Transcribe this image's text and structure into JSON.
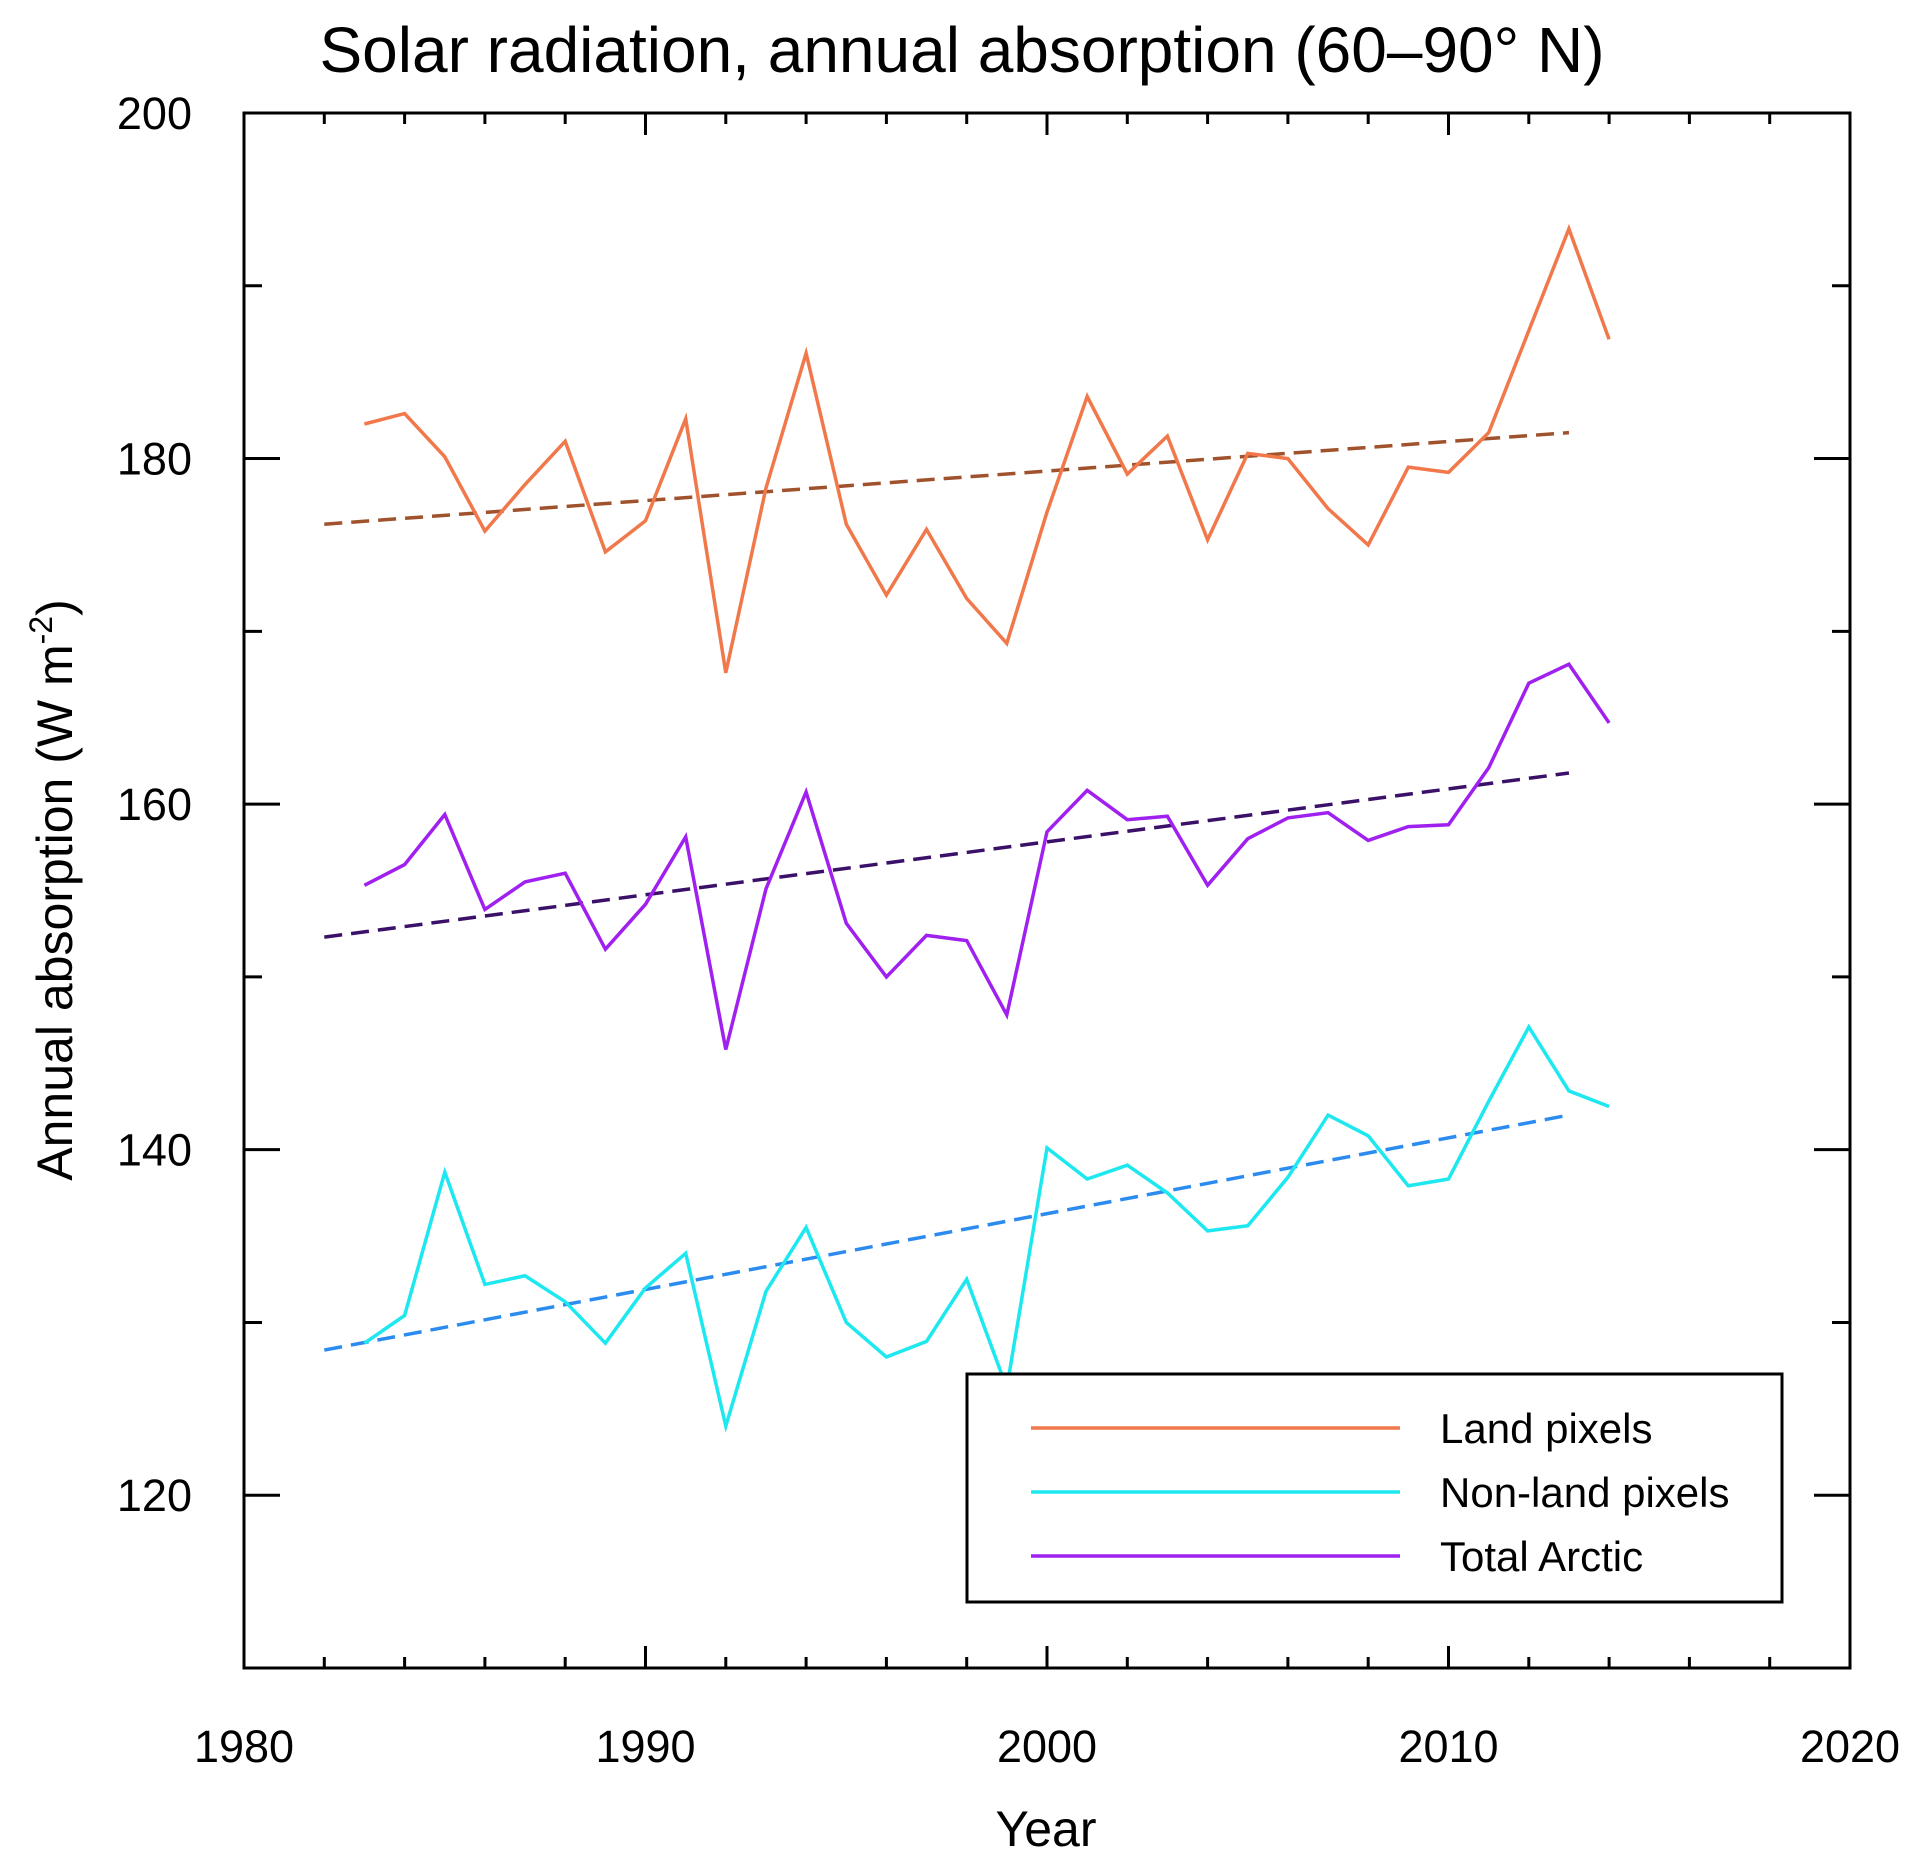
{
  "chart_data": {
    "type": "line",
    "title": "Solar radiation, annual absorption (60–90° N)",
    "xlabel": "Year",
    "ylabel_main": "Annual absorption (W m",
    "ylabel_sup": "-2",
    "ylabel_close": ")",
    "xlim": [
      1980,
      2020
    ],
    "ylim": [
      110,
      200
    ],
    "x_ticks": [
      "1980",
      "1990",
      "2000",
      "2010",
      "2020"
    ],
    "y_ticks": [
      "120",
      "140",
      "160",
      "180",
      "200"
    ],
    "years": [
      1983,
      1984,
      1985,
      1986,
      1987,
      1988,
      1989,
      1990,
      1991,
      1992,
      1993,
      1994,
      1995,
      1996,
      1997,
      1998,
      1999,
      2000,
      2001,
      2002,
      2003,
      2004,
      2005,
      2006,
      2007,
      2008,
      2009,
      2010,
      2011,
      2012,
      2013,
      2014
    ],
    "series": [
      {
        "name": "Land pixels",
        "color": "#f0784a",
        "values": [
          182.0,
          182.6,
          180.1,
          175.8,
          178.5,
          181.0,
          174.6,
          176.4,
          182.3,
          167.6,
          178.3,
          186.1,
          176.2,
          172.1,
          175.9,
          171.9,
          169.3,
          176.9,
          183.6,
          179.1,
          181.3,
          175.3,
          180.3,
          180.0,
          177.1,
          175.0,
          179.5,
          179.2,
          181.5,
          187.4,
          193.3,
          186.9
        ]
      },
      {
        "name": "Non-land pixels",
        "color": "#1de8f0",
        "values": [
          128.8,
          130.4,
          138.7,
          132.2,
          132.7,
          131.2,
          128.8,
          132.0,
          134.0,
          124.0,
          131.8,
          135.5,
          130.0,
          128.0,
          128.9,
          132.5,
          126.2,
          140.1,
          138.3,
          139.1,
          137.5,
          135.3,
          135.6,
          138.4,
          142.0,
          140.8,
          137.9,
          138.3,
          142.8,
          147.1,
          143.4,
          142.5
        ]
      },
      {
        "name": "Total Arctic",
        "color": "#a020f0",
        "values": [
          155.3,
          156.5,
          159.4,
          153.9,
          155.5,
          156.0,
          151.6,
          154.2,
          158.1,
          145.8,
          155.1,
          160.7,
          153.1,
          150.0,
          152.4,
          152.1,
          147.8,
          158.4,
          160.8,
          159.1,
          159.3,
          155.3,
          158.0,
          159.2,
          159.5,
          157.9,
          158.7,
          158.8,
          162.1,
          167.0,
          168.1,
          164.7
        ]
      }
    ],
    "trends": [
      {
        "name": "Land pixels trend",
        "color": "#a0522d",
        "x": [
          1982,
          2013
        ],
        "y": [
          176.2,
          181.5
        ]
      },
      {
        "name": "Total Arctic trend",
        "color": "#3b1068",
        "x": [
          1982,
          2013
        ],
        "y": [
          152.3,
          161.8
        ]
      },
      {
        "name": "Non-land pixels trend",
        "color": "#2b8bef",
        "x": [
          1982,
          2013
        ],
        "y": [
          128.4,
          142.0
        ]
      }
    ],
    "legend_position": "bottom-right",
    "grid": false
  }
}
